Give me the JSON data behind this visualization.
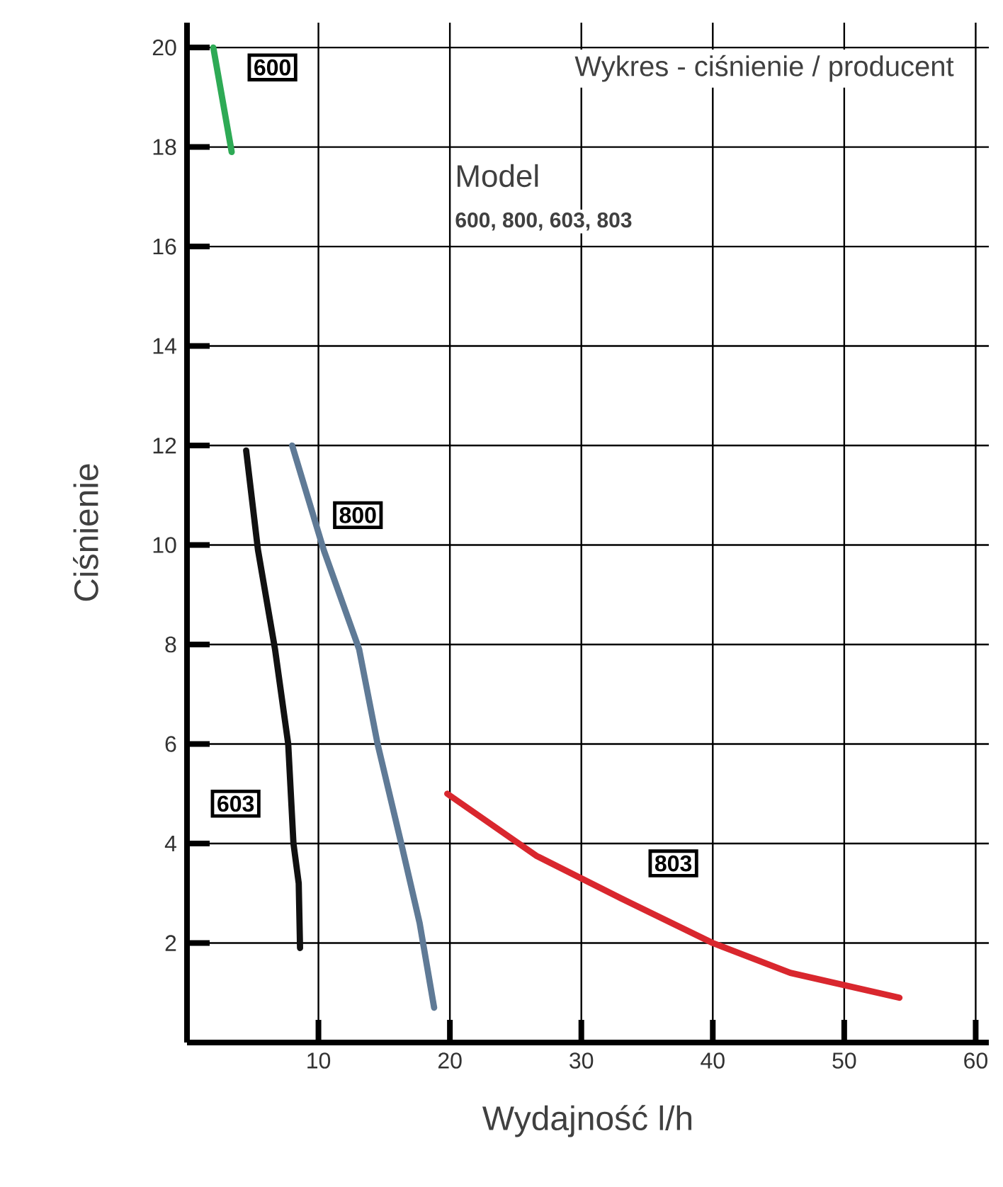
{
  "chart_data": {
    "type": "line",
    "title": "Wykres - ciśnienie / producent",
    "xlabel": "Wydajność l/h",
    "ylabel": "Ciśnienie",
    "annotations": [
      "Model",
      "600, 800, 603, 803",
      {
        "text": "600",
        "x": 6.5,
        "y": 19.6
      },
      {
        "text": "800",
        "x": 13,
        "y": 10.6
      },
      {
        "text": "603",
        "x": 3.7,
        "y": 4.8
      },
      {
        "text": "803",
        "x": 37,
        "y": 3.6
      }
    ],
    "series": [
      {
        "color": "#2eaa55",
        "x": [
          2.0,
          3.4
        ],
        "values": [
          20.0,
          17.9
        ]
      },
      {
        "color": "#111111",
        "x": [
          4.5,
          5.4,
          6.7,
          7.7,
          8.1,
          8.5,
          8.6
        ],
        "values": [
          11.9,
          9.9,
          7.9,
          6.0,
          4.0,
          3.2,
          1.9
        ]
      },
      {
        "color": "#5f7a96",
        "x": [
          8.0,
          10.4,
          13.1,
          14.5,
          16.3,
          17.7,
          18.8
        ],
        "values": [
          12.0,
          9.9,
          7.9,
          6.0,
          4.0,
          2.4,
          0.7
        ]
      },
      {
        "color": "#d9272e",
        "x": [
          19.8,
          26.6,
          33,
          40,
          45.9,
          54.2
        ],
        "values": [
          5.0,
          3.75,
          2.9,
          2.0,
          1.4,
          0.9
        ]
      }
    ],
    "xlim": [
      0,
      61
    ],
    "ylim": [
      0,
      20.5
    ],
    "xticks": [
      {
        "value": 0,
        "label": null
      },
      10,
      20,
      30,
      40,
      50,
      60
    ],
    "yticks": [
      {
        "value": 0,
        "label": null
      },
      2,
      4,
      6,
      8,
      10,
      12,
      14,
      16,
      18,
      20
    ],
    "grid": true,
    "marker": "none",
    "line_style": "solid"
  }
}
